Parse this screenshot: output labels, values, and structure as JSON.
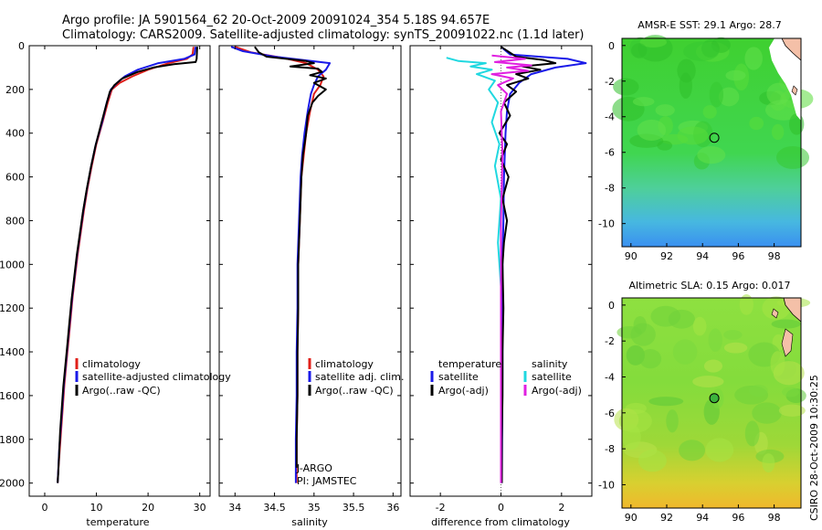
{
  "header": {
    "line1": "Argo profile: JA 5901564_62 20-Oct-2009 20091024_354 5.18S 94.657E",
    "line2": "Climatology: CARS2009. Satellite-adjusted climatology: synTS_20091022.nc (1.1d later)"
  },
  "side_label": "CSIRO 28-Oct-2009 10:30:25",
  "colors": {
    "clim": "#e0201a",
    "sat": "#1a1ae8",
    "argo": "#000000",
    "sal_sat": "#20d8e0",
    "sal_argo": "#e020e0"
  },
  "chart_data": [
    {
      "type": "line",
      "title": "",
      "xlabel": "temperature",
      "ylabel": "",
      "xlim": [
        -3,
        32
      ],
      "ylim": [
        0,
        2060
      ],
      "y_reversed": true,
      "xticks": [
        "0",
        "10",
        "20",
        "30"
      ],
      "yticks": [
        "0",
        "200",
        "400",
        "600",
        "800",
        "1000",
        "1200",
        "1400",
        "1600",
        "1800",
        "2000"
      ],
      "legend": {
        "placement": "bottom-right",
        "entries": [
          "climatology",
          "satellite-adjusted climatology",
          "Argo(..raw -QC)"
        ]
      },
      "series": [
        {
          "name": "climatology",
          "color_key": "clim",
          "points": [
            [
              28.8,
              5
            ],
            [
              28.6,
              40
            ],
            [
              27.5,
              60
            ],
            [
              24,
              80
            ],
            [
              20,
              110
            ],
            [
              17,
              140
            ],
            [
              14.5,
              170
            ],
            [
              13,
              200
            ],
            [
              12.2,
              260
            ],
            [
              11.2,
              350
            ],
            [
              10,
              450
            ],
            [
              9.1,
              550
            ],
            [
              8.3,
              650
            ],
            [
              7.6,
              750
            ],
            [
              7,
              850
            ],
            [
              6.4,
              950
            ],
            [
              5.9,
              1050
            ],
            [
              5.4,
              1150
            ],
            [
              5,
              1250
            ],
            [
              4.6,
              1350
            ],
            [
              4.2,
              1450
            ],
            [
              3.8,
              1550
            ],
            [
              3.5,
              1650
            ],
            [
              3.2,
              1750
            ],
            [
              2.9,
              1850
            ],
            [
              2.6,
              1950
            ],
            [
              2.5,
              2000
            ]
          ]
        },
        {
          "name": "satellite-adjusted climatology",
          "color_key": "sat",
          "points": [
            [
              29.2,
              5
            ],
            [
              29,
              40
            ],
            [
              27,
              60
            ],
            [
              22,
              80
            ],
            [
              18,
              110
            ],
            [
              15.5,
              140
            ],
            [
              14,
              170
            ],
            [
              12.8,
              200
            ],
            [
              12,
              260
            ],
            [
              11.1,
              350
            ],
            [
              9.9,
              450
            ],
            [
              9,
              550
            ],
            [
              8.2,
              650
            ],
            [
              7.5,
              750
            ],
            [
              6.9,
              850
            ],
            [
              6.3,
              950
            ],
            [
              5.8,
              1050
            ],
            [
              5.3,
              1150
            ],
            [
              4.9,
              1250
            ],
            [
              4.5,
              1350
            ],
            [
              4.1,
              1450
            ],
            [
              3.7,
              1550
            ],
            [
              3.4,
              1650
            ],
            [
              3.1,
              1750
            ],
            [
              2.8,
              1850
            ],
            [
              2.6,
              1950
            ],
            [
              2.5,
              2000
            ]
          ]
        },
        {
          "name": "Argo(..raw -QC)",
          "color_key": "argo",
          "points": [
            [
              29.5,
              5
            ],
            [
              29.4,
              60
            ],
            [
              29.2,
              75
            ],
            [
              25,
              85
            ],
            [
              21,
              100
            ],
            [
              18,
              120
            ],
            [
              15,
              150
            ],
            [
              13.5,
              180
            ],
            [
              12.6,
              210
            ],
            [
              11.8,
              280
            ],
            [
              10.9,
              360
            ],
            [
              9.8,
              460
            ],
            [
              8.9,
              560
            ],
            [
              8.1,
              660
            ],
            [
              7.4,
              760
            ],
            [
              6.8,
              860
            ],
            [
              6.2,
              960
            ],
            [
              5.7,
              1060
            ],
            [
              5.2,
              1160
            ],
            [
              4.8,
              1260
            ],
            [
              4.4,
              1360
            ],
            [
              4,
              1460
            ],
            [
              3.6,
              1560
            ],
            [
              3.3,
              1660
            ],
            [
              3,
              1760
            ],
            [
              2.8,
              1860
            ],
            [
              2.6,
              1960
            ],
            [
              2.5,
              2000
            ]
          ]
        }
      ]
    },
    {
      "type": "line",
      "title": "",
      "xlabel": "salinity",
      "ylabel": "",
      "xlim": [
        33.8,
        36.1
      ],
      "ylim": [
        0,
        2060
      ],
      "y_reversed": true,
      "xticks": [
        "34",
        "34.5",
        "35",
        "35.5",
        "36"
      ],
      "yticks": [],
      "legend": {
        "placement": "bottom-right",
        "entries": [
          "climatology",
          "satellite adj. clim.",
          "Argo(..raw -QC)"
        ]
      },
      "annotations": [
        "J-ARGO",
        "PI: JAMSTEC"
      ],
      "series": [
        {
          "name": "climatology",
          "color_key": "clim",
          "points": [
            [
              34.0,
              5
            ],
            [
              34.2,
              30
            ],
            [
              34.6,
              55
            ],
            [
              34.9,
              80
            ],
            [
              35.05,
              110
            ],
            [
              35.12,
              140
            ],
            [
              35.08,
              180
            ],
            [
              35.0,
              220
            ],
            [
              34.95,
              300
            ],
            [
              34.9,
              400
            ],
            [
              34.87,
              500
            ],
            [
              34.84,
              600
            ],
            [
              34.82,
              800
            ],
            [
              34.8,
              1000
            ],
            [
              34.8,
              1200
            ],
            [
              34.79,
              1400
            ],
            [
              34.79,
              1600
            ],
            [
              34.78,
              1800
            ],
            [
              34.78,
              2000
            ]
          ]
        },
        {
          "name": "satellite adj. clim.",
          "color_key": "sat",
          "points": [
            [
              33.95,
              5
            ],
            [
              34.1,
              25
            ],
            [
              34.5,
              50
            ],
            [
              35.2,
              80
            ],
            [
              35.15,
              110
            ],
            [
              35.05,
              140
            ],
            [
              35.0,
              180
            ],
            [
              34.96,
              220
            ],
            [
              34.92,
              300
            ],
            [
              34.88,
              400
            ],
            [
              34.85,
              500
            ],
            [
              34.83,
              600
            ],
            [
              34.81,
              800
            ],
            [
              34.79,
              1000
            ],
            [
              34.79,
              1200
            ],
            [
              34.78,
              1400
            ],
            [
              34.78,
              1600
            ],
            [
              34.77,
              1800
            ],
            [
              34.77,
              2000
            ]
          ]
        },
        {
          "name": "Argo(..raw -QC)",
          "color_key": "argo",
          "points": [
            [
              34.25,
              5
            ],
            [
              34.3,
              30
            ],
            [
              34.4,
              50
            ],
            [
              34.9,
              70
            ],
            [
              35.0,
              80
            ],
            [
              34.7,
              95
            ],
            [
              35.05,
              105
            ],
            [
              35.1,
              120
            ],
            [
              34.95,
              135
            ],
            [
              35.15,
              150
            ],
            [
              35.0,
              170
            ],
            [
              35.15,
              200
            ],
            [
              35.05,
              230
            ],
            [
              34.98,
              260
            ],
            [
              34.92,
              320
            ],
            [
              34.9,
              400
            ],
            [
              34.86,
              500
            ],
            [
              34.84,
              600
            ],
            [
              34.82,
              800
            ],
            [
              34.8,
              1000
            ],
            [
              34.8,
              1200
            ],
            [
              34.79,
              1400
            ],
            [
              34.79,
              1600
            ],
            [
              34.78,
              1800
            ],
            [
              34.78,
              1930
            ]
          ]
        }
      ]
    },
    {
      "type": "line",
      "title": "",
      "xlabel": "difference from climatology",
      "ylabel": "",
      "xlim": [
        -3.0,
        3.0
      ],
      "ylim": [
        0,
        2060
      ],
      "y_reversed": true,
      "xticks": [
        "-2",
        "0",
        "2"
      ],
      "yticks": [],
      "legend": {
        "placement": "bottom",
        "entries": [
          "temperature",
          "satellite",
          "Argo(-adj)",
          "salinity",
          "satellite",
          "Argo(-adj)"
        ]
      },
      "series": [
        {
          "name": "temperature satellite",
          "color_key": "sat",
          "points": [
            [
              0,
              5
            ],
            [
              0.3,
              40
            ],
            [
              2.2,
              60
            ],
            [
              2.8,
              80
            ],
            [
              1.8,
              100
            ],
            [
              1.0,
              130
            ],
            [
              0.6,
              170
            ],
            [
              0.3,
              220
            ],
            [
              0.2,
              300
            ],
            [
              0.15,
              400
            ],
            [
              0.1,
              600
            ],
            [
              0.08,
              800
            ],
            [
              0.05,
              1000
            ],
            [
              0.05,
              1500
            ],
            [
              0.03,
              2000
            ]
          ]
        },
        {
          "name": "temperature Argo(-adj)",
          "color_key": "argo",
          "points": [
            [
              0,
              5
            ],
            [
              0.5,
              50
            ],
            [
              1.4,
              65
            ],
            [
              1.8,
              80
            ],
            [
              0.7,
              95
            ],
            [
              1.3,
              110
            ],
            [
              0.5,
              130
            ],
            [
              0.9,
              150
            ],
            [
              0.2,
              180
            ],
            [
              0.5,
              210
            ],
            [
              0.1,
              260
            ],
            [
              0.3,
              320
            ],
            [
              -0.05,
              400
            ],
            [
              0.2,
              450
            ],
            [
              0.0,
              520
            ],
            [
              0.25,
              600
            ],
            [
              0.05,
              700
            ],
            [
              0.2,
              800
            ],
            [
              0.1,
              900
            ],
            [
              0.05,
              1000
            ],
            [
              0.08,
              1200
            ],
            [
              0.05,
              1400
            ],
            [
              0.05,
              1600
            ],
            [
              0.03,
              1800
            ],
            [
              0.03,
              2000
            ]
          ]
        },
        {
          "name": "salinity satellite",
          "color_key": "sal_sat",
          "points": [
            [
              -1.8,
              55
            ],
            [
              -1.4,
              70
            ],
            [
              -0.5,
              80
            ],
            [
              -1.0,
              95
            ],
            [
              -0.3,
              110
            ],
            [
              -0.8,
              130
            ],
            [
              -0.2,
              160
            ],
            [
              -0.4,
              200
            ],
            [
              -0.1,
              260
            ],
            [
              -0.3,
              350
            ],
            [
              -0.05,
              450
            ],
            [
              -0.2,
              550
            ],
            [
              0,
              700
            ],
            [
              -0.1,
              900
            ],
            [
              0,
              1100
            ],
            [
              0,
              1300
            ],
            [
              0,
              1600
            ],
            [
              0,
              2000
            ]
          ]
        },
        {
          "name": "salinity Argo(-adj)",
          "color_key": "sal_argo",
          "points": [
            [
              -0.3,
              45
            ],
            [
              0.8,
              60
            ],
            [
              -0.2,
              75
            ],
            [
              1.0,
              90
            ],
            [
              0.2,
              100
            ],
            [
              0.9,
              115
            ],
            [
              -0.3,
              130
            ],
            [
              0.4,
              150
            ],
            [
              -0.1,
              180
            ],
            [
              0.2,
              220
            ],
            [
              0.0,
              300
            ],
            [
              0.05,
              500
            ],
            [
              0,
              800
            ],
            [
              0,
              1000
            ],
            [
              0,
              1500
            ],
            [
              0,
              2000
            ]
          ]
        }
      ]
    },
    {
      "type": "heatmap",
      "title": "AMSR-E SST: 29.1 Argo: 28.7",
      "xlim": [
        89.5,
        99.5
      ],
      "ylim": [
        -11.3,
        0.4
      ],
      "xticks": [
        "90",
        "92",
        "94",
        "96",
        "98"
      ],
      "yticks": [
        "0",
        "-2",
        "-4",
        "-6",
        "-8",
        "-10"
      ],
      "marker": {
        "lon": 94.657,
        "lat": -5.18
      }
    },
    {
      "type": "heatmap",
      "title": "Altimetric SLA: 0.15 Argo: 0.017",
      "xlim": [
        89.5,
        99.5
      ],
      "ylim": [
        -11.3,
        0.4
      ],
      "xticks": [
        "90",
        "92",
        "94",
        "96",
        "98"
      ],
      "yticks": [
        "0",
        "-2",
        "-4",
        "-6",
        "-8",
        "-10"
      ],
      "marker": {
        "lon": 94.657,
        "lat": -5.18
      }
    }
  ]
}
